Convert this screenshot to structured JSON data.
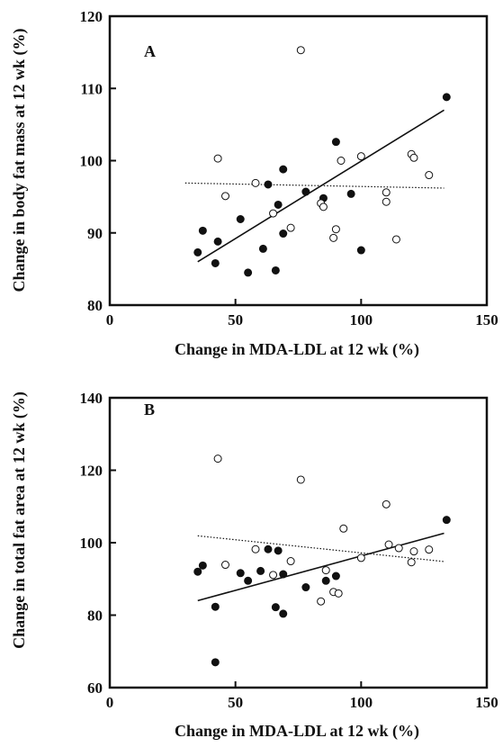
{
  "chart_data": [
    {
      "type": "scatter",
      "panel_label": "A",
      "title": "",
      "xlabel": "Change in MDA-LDL at 12 wk (%)",
      "ylabel": "Change in body fat mass at 12 wk (%)",
      "xlim": [
        0,
        150
      ],
      "ylim": [
        80,
        120
      ],
      "xticks": [
        0,
        50,
        100,
        150
      ],
      "yticks": [
        80,
        90,
        100,
        110,
        120
      ],
      "grid": false,
      "legend": "none",
      "series": [
        {
          "marker": "filled-circle",
          "points": [
            [
              35,
              87.3
            ],
            [
              37,
              90.3
            ],
            [
              42,
              85.8
            ],
            [
              43,
              88.8
            ],
            [
              52,
              91.9
            ],
            [
              55,
              84.5
            ],
            [
              61,
              87.8
            ],
            [
              63,
              96.7
            ],
            [
              66,
              84.8
            ],
            [
              67,
              93.9
            ],
            [
              69,
              98.8
            ],
            [
              69,
              89.9
            ],
            [
              78,
              95.7
            ],
            [
              85,
              94.8
            ],
            [
              90,
              102.6
            ],
            [
              96,
              95.4
            ],
            [
              100,
              87.6
            ],
            [
              134,
              108.8
            ]
          ],
          "fit": {
            "style": "solid",
            "x": [
              35,
              133
            ],
            "y": [
              86.0,
              107.0
            ]
          }
        },
        {
          "marker": "open-circle",
          "points": [
            [
              43,
              100.3
            ],
            [
              46,
              95.1
            ],
            [
              58,
              96.9
            ],
            [
              65,
              92.7
            ],
            [
              72,
              90.7
            ],
            [
              76,
              115.3
            ],
            [
              84,
              94.1
            ],
            [
              85,
              93.6
            ],
            [
              89,
              89.3
            ],
            [
              90,
              90.5
            ],
            [
              92,
              100.0
            ],
            [
              100,
              100.6
            ],
            [
              110,
              94.3
            ],
            [
              110,
              95.6
            ],
            [
              114,
              89.1
            ],
            [
              120,
              100.9
            ],
            [
              121,
              100.4
            ],
            [
              127,
              98.0
            ]
          ],
          "fit": {
            "style": "dotted",
            "x": [
              30,
              133
            ],
            "y": [
              96.9,
              96.2
            ]
          }
        }
      ]
    },
    {
      "type": "scatter",
      "panel_label": "B",
      "title": "",
      "xlabel": "Change in MDA-LDL at 12 wk (%)",
      "ylabel": "Change in total fat area at 12 wk (%)",
      "xlim": [
        0,
        150
      ],
      "ylim": [
        60,
        140
      ],
      "xticks": [
        0,
        50,
        100,
        150
      ],
      "yticks": [
        60,
        80,
        100,
        120,
        140
      ],
      "grid": false,
      "legend": "none",
      "series": [
        {
          "marker": "filled-circle",
          "points": [
            [
              35,
              92.0
            ],
            [
              37,
              93.7
            ],
            [
              42,
              82.3
            ],
            [
              42,
              67.0
            ],
            [
              52,
              91.6
            ],
            [
              55,
              89.5
            ],
            [
              60,
              92.2
            ],
            [
              63,
              98.2
            ],
            [
              66,
              82.2
            ],
            [
              67,
              97.8
            ],
            [
              69,
              91.3
            ],
            [
              69,
              80.4
            ],
            [
              78,
              87.7
            ],
            [
              86,
              89.5
            ],
            [
              90,
              90.8
            ],
            [
              134,
              106.3
            ]
          ],
          "fit": {
            "style": "solid",
            "x": [
              35,
              133
            ],
            "y": [
              84.0,
              102.6
            ]
          }
        },
        {
          "marker": "open-circle",
          "points": [
            [
              43,
              123.2
            ],
            [
              46,
              93.9
            ],
            [
              58,
              98.2
            ],
            [
              65,
              91.1
            ],
            [
              72,
              94.9
            ],
            [
              76,
              117.4
            ],
            [
              84,
              83.8
            ],
            [
              86,
              92.4
            ],
            [
              89,
              86.4
            ],
            [
              91,
              86.0
            ],
            [
              93,
              103.9
            ],
            [
              100,
              95.8
            ],
            [
              110,
              110.6
            ],
            [
              111,
              99.5
            ],
            [
              115,
              98.5
            ],
            [
              120,
              94.6
            ],
            [
              121,
              97.6
            ],
            [
              127,
              98.1
            ]
          ],
          "fit": {
            "style": "dotted",
            "x": [
              35,
              133
            ],
            "y": [
              101.9,
              94.8
            ]
          }
        }
      ]
    }
  ]
}
